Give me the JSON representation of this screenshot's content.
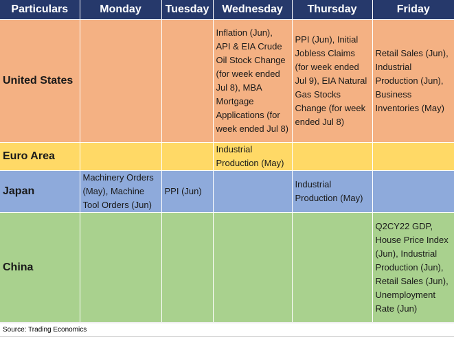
{
  "header": {
    "particulars": "Particulars",
    "monday": "Monday",
    "tuesday": "Tuesday",
    "wednesday": "Wednesday",
    "thursday": "Thursday",
    "friday": "Friday"
  },
  "rows": [
    {
      "region": "United States",
      "monday": "",
      "tuesday": "",
      "wednesday": "Inflation (Jun), API & EIA Crude Oil Stock Change (for week ended Jul 8), MBA Mortgage Applications (for week ended Jul 8)",
      "thursday": "PPI (Jun), Initial Jobless Claims (for week ended Jul 9), EIA Natural Gas Stocks Change (for week ended Jul 8)",
      "friday": "Retail Sales (Jun), Industrial Production (Jun), Business Inventories (May)"
    },
    {
      "region": "Euro Area",
      "monday": "",
      "tuesday": "",
      "wednesday": "Industrial Production (May)",
      "thursday": "",
      "friday": ""
    },
    {
      "region": "Japan",
      "monday": "Machinery Orders (May), Machine Tool Orders (Jun)",
      "tuesday": "PPI (Jun)",
      "wednesday": "",
      "thursday": "Industrial Production (May)",
      "friday": ""
    },
    {
      "region": "China",
      "monday": "",
      "tuesday": "",
      "wednesday": "",
      "thursday": "",
      "friday": "Q2CY22 GDP, House Price Index (Jun), Industrial Production (Jun), Retail Sales (Jun), Unemployment Rate (Jun)"
    }
  ],
  "footer": {
    "source": "Source: Trading Economics"
  },
  "colors": {
    "header_bg": "#26396b",
    "united_states": "#f4b183",
    "euro_area": "#ffd966",
    "japan": "#8eaadb",
    "china": "#a9d18e"
  }
}
